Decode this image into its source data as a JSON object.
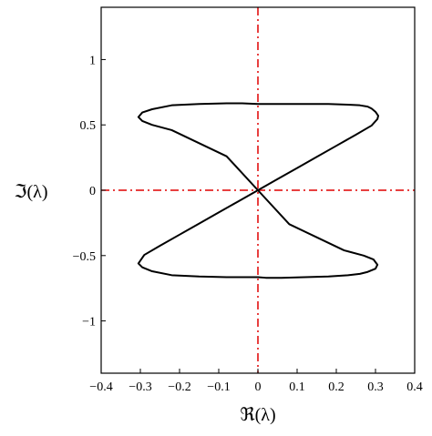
{
  "chart_data": {
    "type": "line",
    "title": "",
    "xlabel": "ℜ(λ)",
    "ylabel": "ℑ(λ)",
    "xlim": [
      -0.4,
      0.4
    ],
    "ylim": [
      -1.4,
      1.4
    ],
    "grid": false,
    "x_ticks": [
      {
        "value": -0.4,
        "label": "−0.4"
      },
      {
        "value": -0.3,
        "label": "−0.3"
      },
      {
        "value": -0.2,
        "label": "−0.2"
      },
      {
        "value": -0.1,
        "label": "−0.1"
      },
      {
        "value": 0,
        "label": "0"
      },
      {
        "value": 0.1,
        "label": "0.1"
      },
      {
        "value": 0.2,
        "label": "0.2"
      },
      {
        "value": 0.3,
        "label": "0.3"
      },
      {
        "value": 0.4,
        "label": "0.4"
      }
    ],
    "y_ticks": [
      {
        "value": 1,
        "label": "1"
      },
      {
        "value": 0.5,
        "label": "0.5"
      },
      {
        "value": 0,
        "label": "0"
      },
      {
        "value": -0.5,
        "label": "−0.5"
      },
      {
        "value": -1,
        "label": "−1"
      }
    ],
    "reference_lines": [
      {
        "orientation": "horizontal",
        "value": 0,
        "color": "#e00000",
        "style": "dash-dot"
      },
      {
        "orientation": "vertical",
        "value": 0,
        "color": "#e00000",
        "style": "dash-dot"
      }
    ],
    "series": [
      {
        "color": "#000000",
        "x": [
          0.0,
          0.05,
          0.1,
          0.15,
          0.2,
          0.25,
          0.29,
          0.305,
          0.307,
          0.3,
          0.29,
          0.28,
          0.26,
          0.23,
          0.18,
          0.12,
          0.06,
          0.02,
          0.0,
          -0.04,
          -0.08,
          -0.15,
          -0.22,
          -0.27,
          -0.295,
          -0.305,
          -0.295,
          -0.27,
          -0.22,
          -0.15,
          -0.08,
          0.0,
          0.08,
          0.15,
          0.22,
          0.27,
          0.295,
          0.305,
          0.3,
          0.28,
          0.26,
          0.23,
          0.18,
          0.12,
          0.06,
          0.02,
          0.0,
          -0.04,
          -0.08,
          -0.15,
          -0.22,
          -0.27,
          -0.295,
          -0.305,
          -0.29,
          -0.25,
          -0.2,
          -0.15,
          -0.1,
          -0.05,
          0.0
        ],
        "y": [
          0.0,
          0.085,
          0.17,
          0.255,
          0.34,
          0.425,
          0.495,
          0.545,
          0.57,
          0.6,
          0.625,
          0.64,
          0.65,
          0.655,
          0.66,
          0.66,
          0.66,
          0.66,
          0.66,
          0.665,
          0.665,
          0.66,
          0.65,
          0.62,
          0.595,
          0.56,
          0.53,
          0.5,
          0.46,
          0.36,
          0.26,
          0.0,
          -0.26,
          -0.36,
          -0.46,
          -0.5,
          -0.53,
          -0.57,
          -0.6,
          -0.625,
          -0.64,
          -0.65,
          -0.66,
          -0.665,
          -0.67,
          -0.67,
          -0.665,
          -0.665,
          -0.665,
          -0.66,
          -0.65,
          -0.62,
          -0.59,
          -0.56,
          -0.495,
          -0.425,
          -0.34,
          -0.255,
          -0.17,
          -0.085,
          0.0
        ]
      }
    ]
  }
}
